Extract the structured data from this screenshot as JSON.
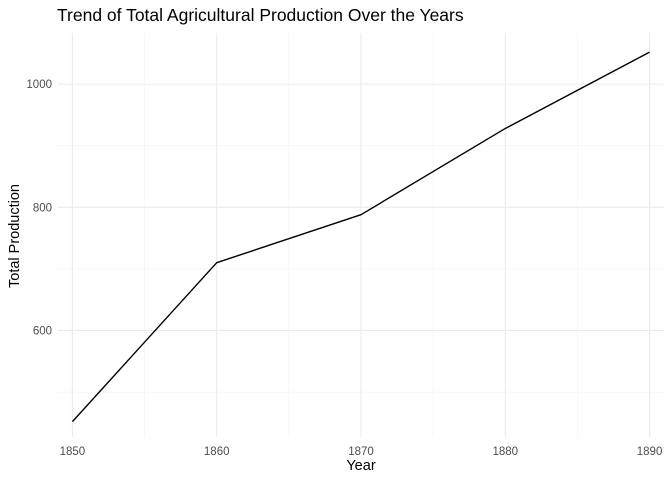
{
  "chart_data": {
    "type": "line",
    "title": "Trend of Total Agricultural Production Over the Years",
    "xlabel": "Year",
    "ylabel": "Total Production",
    "x": [
      1850,
      1860,
      1870,
      1880,
      1890
    ],
    "series": [
      {
        "values": [
          452,
          710,
          788,
          928,
          1052
        ]
      }
    ],
    "xlim": [
      1849,
      1891
    ],
    "ylim": [
      427,
      1083
    ],
    "x_ticks": [
      1850,
      1860,
      1870,
      1880,
      1890
    ],
    "x_tick_labels": [
      "1850",
      "1860",
      "1870",
      "1880",
      "1890"
    ],
    "y_ticks": [
      600,
      800,
      1000
    ],
    "y_tick_labels": [
      "600",
      "800",
      "1000"
    ],
    "x_minor_ticks": [
      1855,
      1865,
      1875,
      1885
    ],
    "y_minor_ticks": [
      500,
      700,
      900
    ],
    "grid": true,
    "legend": "none",
    "line_color": "#000000"
  }
}
